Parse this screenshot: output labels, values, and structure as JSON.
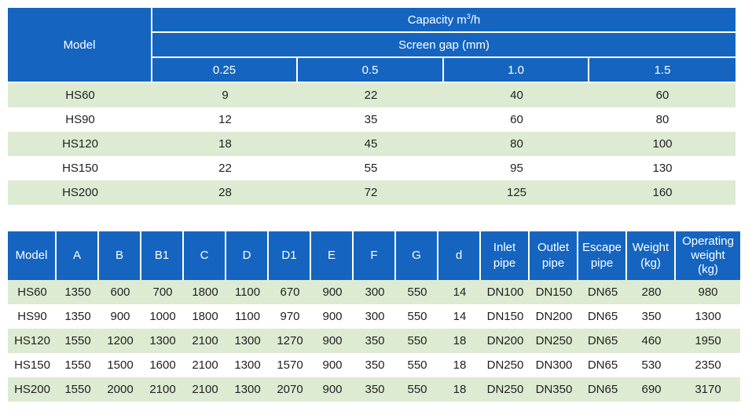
{
  "capacity_table": {
    "model_header": "Model",
    "capacity_header": "Capacity m",
    "capacity_sup": "3",
    "capacity_unit_tail": "/h",
    "gap_header": "Screen gap (mm)",
    "gaps": [
      "0.25",
      "0.5",
      "1.0",
      "1.5"
    ],
    "rows": [
      {
        "model": "HS60",
        "values": [
          "9",
          "22",
          "40",
          "60"
        ]
      },
      {
        "model": "HS90",
        "values": [
          "12",
          "35",
          "60",
          "80"
        ]
      },
      {
        "model": "HS120",
        "values": [
          "18",
          "45",
          "80",
          "100"
        ]
      },
      {
        "model": "HS150",
        "values": [
          "22",
          "55",
          "95",
          "130"
        ]
      },
      {
        "model": "HS200",
        "values": [
          "28",
          "72",
          "125",
          "160"
        ]
      }
    ]
  },
  "dimension_table": {
    "headers": [
      [
        "Model"
      ],
      [
        "A"
      ],
      [
        "B"
      ],
      [
        "B1"
      ],
      [
        "C"
      ],
      [
        "D"
      ],
      [
        "D1"
      ],
      [
        "E"
      ],
      [
        "F"
      ],
      [
        "G"
      ],
      [
        "d"
      ],
      [
        "Inlet",
        "pipe"
      ],
      [
        "Outlet",
        "pipe"
      ],
      [
        "Escape",
        "pipe"
      ],
      [
        "Weight",
        "(kg)"
      ],
      [
        "Operating",
        "weight",
        "(kg)"
      ]
    ],
    "rows": [
      [
        "HS60",
        "1350",
        "600",
        "700",
        "1800",
        "1100",
        "670",
        "900",
        "300",
        "550",
        "14",
        "DN100",
        "DN150",
        "DN65",
        "280",
        "980"
      ],
      [
        "HS90",
        "1350",
        "900",
        "1000",
        "1800",
        "1100",
        "970",
        "900",
        "300",
        "550",
        "14",
        "DN150",
        "DN200",
        "DN65",
        "350",
        "1300"
      ],
      [
        "HS120",
        "1550",
        "1200",
        "1300",
        "2100",
        "1300",
        "1270",
        "900",
        "350",
        "550",
        "18",
        "DN200",
        "DN250",
        "DN65",
        "460",
        "1950"
      ],
      [
        "HS150",
        "1550",
        "1500",
        "1600",
        "2100",
        "1300",
        "1570",
        "900",
        "350",
        "550",
        "18",
        "DN250",
        "DN300",
        "DN65",
        "530",
        "2350"
      ],
      [
        "HS200",
        "1550",
        "2000",
        "2100",
        "2100",
        "1300",
        "2070",
        "900",
        "350",
        "550",
        "18",
        "DN250",
        "DN350",
        "DN65",
        "690",
        "3170"
      ]
    ]
  },
  "colors": {
    "header": "#1565c0",
    "row_shade": "#dcebd2"
  }
}
